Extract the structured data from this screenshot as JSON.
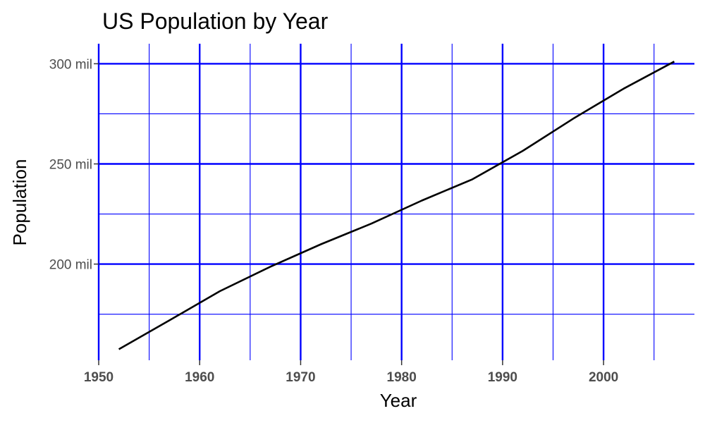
{
  "chart_data": {
    "type": "line",
    "title": "US Population by Year",
    "xlabel": "Year",
    "ylabel": "Population",
    "xlim": [
      1950,
      2009
    ],
    "ylim": [
      152,
      310
    ],
    "x_ticks": [
      1950,
      1960,
      1970,
      1980,
      1990,
      2000
    ],
    "x_minor_ticks": [
      1955,
      1965,
      1975,
      1985,
      1995,
      2005
    ],
    "y_ticks": [
      {
        "value": 200,
        "label": "200 mil"
      },
      {
        "value": 250,
        "label": "250 mil"
      },
      {
        "value": 300,
        "label": "300 mil"
      }
    ],
    "y_minor_ticks": [
      175,
      225,
      275
    ],
    "grid": true,
    "colors": {
      "grid": "#0000ff",
      "line": "#000000",
      "tick_text": "#4d4d4d"
    },
    "series": [
      {
        "x": [
          1952,
          1957,
          1962,
          1967,
          1972,
          1977,
          1982,
          1987,
          1992,
          1997,
          2002,
          2007
        ],
        "values": [
          157.5,
          171.9,
          186.5,
          198.7,
          209.9,
          220.2,
          231.7,
          242.3,
          256.5,
          272.6,
          287.6,
          301.1
        ]
      }
    ]
  }
}
